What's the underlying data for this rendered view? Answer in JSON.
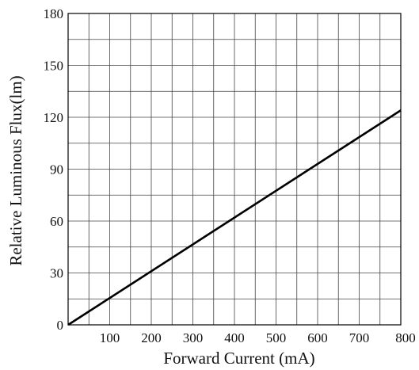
{
  "chart_data": {
    "type": "line",
    "xlabel": "Forward Current (mA)",
    "ylabel": "Relative Luminous Flux(lm)",
    "xlim": [
      0,
      800
    ],
    "ylim": [
      0,
      180
    ],
    "x_ticks": [
      100,
      200,
      300,
      400,
      500,
      600,
      700,
      800
    ],
    "y_ticks": [
      0,
      30,
      60,
      90,
      120,
      150,
      180
    ],
    "grid": true,
    "grid_minor_x_step": 50,
    "grid_minor_y_step": 15,
    "series": [
      {
        "x": [
          0,
          800
        ],
        "y": [
          0,
          124
        ],
        "color": "#000000"
      }
    ]
  }
}
